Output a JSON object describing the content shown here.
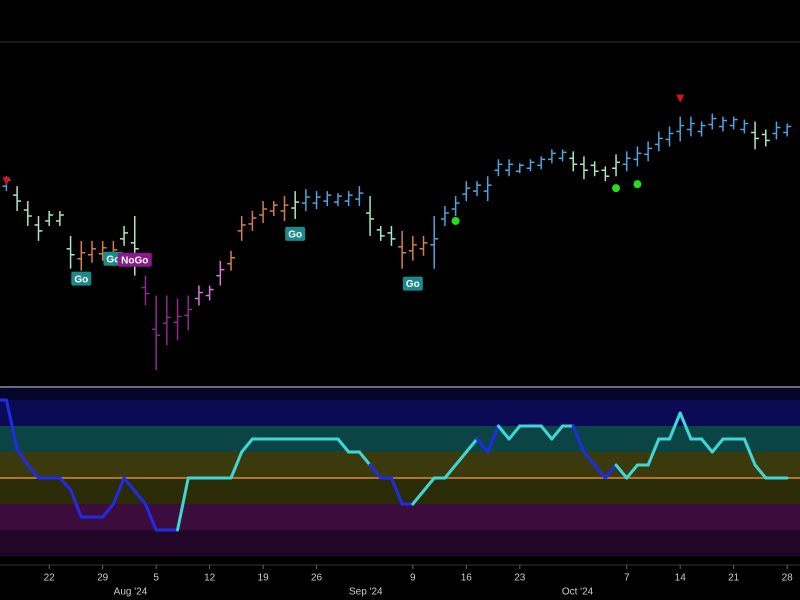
{
  "chart_data": {
    "type": "ohlc",
    "x": [
      0,
      1,
      2,
      3,
      4,
      5,
      6,
      7,
      8,
      9,
      10,
      11,
      12,
      13,
      14,
      15,
      16,
      17,
      18,
      19,
      20,
      21,
      22,
      23,
      24,
      25,
      26,
      27,
      28,
      29,
      30,
      31,
      32,
      33,
      34,
      35,
      36,
      37,
      38,
      39,
      40,
      41,
      42,
      43,
      44,
      45,
      46,
      47,
      48,
      49,
      50,
      51,
      52,
      53,
      54,
      55,
      56,
      57,
      58,
      59,
      60,
      61,
      62,
      63,
      64,
      65,
      66,
      67,
      68,
      69,
      70,
      71,
      72,
      73,
      74
    ],
    "open": [
      207,
      200,
      191,
      176,
      161,
      165,
      165,
      137,
      127,
      131,
      132,
      130,
      147,
      143,
      98,
      56,
      62,
      63,
      70,
      87,
      90,
      110,
      122,
      155,
      162,
      171,
      175,
      175,
      178,
      183,
      183,
      185,
      184,
      185,
      187,
      173,
      156,
      153,
      139,
      135,
      137,
      141,
      167,
      177,
      192,
      195,
      195,
      216,
      216,
      215,
      218,
      221,
      227,
      228,
      228,
      222,
      221,
      216,
      218,
      222,
      227,
      232,
      242,
      247,
      255,
      257,
      255,
      262,
      260,
      261,
      257,
      254,
      252,
      253,
      254
    ],
    "high": [
      220,
      210,
      200,
      185,
      170,
      175,
      175,
      150,
      145,
      145,
      145,
      145,
      160,
      170,
      110,
      90,
      90,
      87,
      90,
      100,
      100,
      125,
      135,
      170,
      175,
      185,
      185,
      190,
      195,
      197,
      195,
      195,
      193,
      195,
      200,
      190,
      160,
      160,
      155,
      150,
      150,
      170,
      180,
      190,
      205,
      205,
      210,
      227,
      227,
      223,
      227,
      230,
      237,
      237,
      235,
      230,
      225,
      220,
      232,
      235,
      240,
      245,
      255,
      260,
      270,
      270,
      265,
      273,
      270,
      270,
      267,
      265,
      257,
      265,
      263
    ],
    "low": [
      200,
      195,
      175,
      160,
      145,
      160,
      160,
      117,
      115,
      123,
      125,
      120,
      140,
      110,
      80,
      15,
      40,
      45,
      55,
      80,
      85,
      100,
      115,
      145,
      155,
      163,
      170,
      165,
      167,
      175,
      177,
      180,
      180,
      180,
      180,
      150,
      145,
      140,
      117,
      125,
      130,
      117,
      160,
      170,
      185,
      190,
      185,
      210,
      210,
      213,
      215,
      217,
      223,
      225,
      215,
      207,
      210,
      205,
      210,
      215,
      220,
      225,
      235,
      240,
      245,
      250,
      250,
      257,
      255,
      257,
      253,
      237,
      240,
      247,
      250
    ],
    "close": [
      213,
      206,
      185,
      170,
      155,
      171,
      171,
      131,
      133,
      137,
      138,
      136,
      153,
      137,
      92,
      50,
      68,
      69,
      76,
      93,
      96,
      116,
      128,
      161,
      168,
      177,
      181,
      181,
      184,
      189,
      189,
      191,
      190,
      191,
      193,
      167,
      150,
      147,
      133,
      141,
      143,
      147,
      173,
      183,
      198,
      201,
      201,
      222,
      222,
      221,
      224,
      227,
      233,
      234,
      222,
      216,
      215,
      210,
      224,
      228,
      233,
      238,
      248,
      253,
      261,
      263,
      261,
      268,
      266,
      267,
      263,
      248,
      246,
      259,
      260
    ],
    "colors": [
      "#4fa3e0",
      "#4fa3e0",
      "#a8e8c8",
      "#a8e8c8",
      "#a8e8c8",
      "#a8e8c8",
      "#a8e8c8",
      "#a8e8c8",
      "#d2804a",
      "#d2804a",
      "#d2804a",
      "#d2804a",
      "#a8e8c8",
      "#a8e8c8",
      "#8e2a8e",
      "#8e2a8e",
      "#8e2a8e",
      "#8e2a8e",
      "#8e2a8e",
      "#d67ad6",
      "#d67ad6",
      "#d67ad6",
      "#d2804a",
      "#d2804a",
      "#d2804a",
      "#d2804a",
      "#d2804a",
      "#d2804a",
      "#a8e8c8",
      "#4fa3e0",
      "#4fa3e0",
      "#4fa3e0",
      "#4fa3e0",
      "#4fa3e0",
      "#4fa3e0",
      "#a8e8c8",
      "#a8e8c8",
      "#a8e8c8",
      "#d2804a",
      "#d2804a",
      "#d2804a",
      "#4fa3e0",
      "#4fa3e0",
      "#4fa3e0",
      "#4fa3e0",
      "#4fa3e0",
      "#4fa3e0",
      "#4fa3e0",
      "#4fa3e0",
      "#4fa3e0",
      "#4fa3e0",
      "#4fa3e0",
      "#4fa3e0",
      "#4fa3e0",
      "#a8e8c8",
      "#a8e8c8",
      "#a8e8c8",
      "#a8e8c8",
      "#a8e8c8",
      "#4fa3e0",
      "#4fa3e0",
      "#4fa3e0",
      "#4fa3e0",
      "#4fa3e0",
      "#4fa3e0",
      "#4fa3e0",
      "#4fa3e0",
      "#4fa3e0",
      "#4fa3e0",
      "#4fa3e0",
      "#4fa3e0",
      "#a8e8c8",
      "#a8e8c8",
      "#4fa3e0",
      "#4fa3e0"
    ],
    "xlim": [
      0.4,
      75.2
    ],
    "ylim": [
      0,
      343
    ],
    "xticks": [
      {
        "value": 5,
        "label": "22"
      },
      {
        "value": 10,
        "label": "29"
      },
      {
        "value": 15,
        "label": "5"
      },
      {
        "value": 20,
        "label": "12"
      },
      {
        "value": 25,
        "label": "19"
      },
      {
        "value": 30,
        "label": "26"
      },
      {
        "value": 39,
        "label": "9"
      },
      {
        "value": 44,
        "label": "16"
      },
      {
        "value": 49,
        "label": "23"
      },
      {
        "value": 59,
        "label": "7"
      },
      {
        "value": 64,
        "label": "14"
      },
      {
        "value": 69,
        "label": "21"
      },
      {
        "value": 74,
        "label": "28"
      }
    ],
    "month_ticks": [
      {
        "value": 12.6,
        "label": "Aug '24"
      },
      {
        "value": 34.6,
        "label": "Sep '24"
      },
      {
        "value": 54.4,
        "label": "Oct '24"
      }
    ],
    "triangles": [
      {
        "x": 1,
        "y": 205,
        "color": "#e01010"
      },
      {
        "x": 64,
        "y": 288,
        "color": "#e01010"
      }
    ],
    "dots": [
      {
        "x": 43,
        "y": 165,
        "color": "#22dd22"
      },
      {
        "x": 58,
        "y": 198,
        "color": "#22dd22"
      },
      {
        "x": 60,
        "y": 202,
        "color": "#22dd22"
      }
    ],
    "labels": [
      {
        "text": "Go",
        "x": 8,
        "y": 107,
        "color": "#1a8a8a"
      },
      {
        "text": "Go",
        "x": 11,
        "y": 127,
        "color": "#1a8a8a"
      },
      {
        "text": "NoGo",
        "x": 13,
        "y": 126,
        "color": "#8a1a8a"
      },
      {
        "text": "Go",
        "x": 28,
        "y": 152,
        "color": "#1a8a8a"
      },
      {
        "text": "Go",
        "x": 39,
        "y": 102,
        "color": "#1a8a8a"
      }
    ],
    "oscillator": {
      "ylim": [
        -6,
        6
      ],
      "zero": 0,
      "zero_color": "#e08a30",
      "bands": [
        {
          "from": 4,
          "to": 6,
          "color": "#0b0b55"
        },
        {
          "from": 2,
          "to": 4,
          "color": "#0b4444"
        },
        {
          "from": 0,
          "to": 2,
          "color": "#3a3a0c"
        },
        {
          "from": -2,
          "to": 0,
          "color": "#2b2b08"
        },
        {
          "from": -4,
          "to": -2,
          "color": "#3c0c3c"
        },
        {
          "from": -6,
          "to": -4,
          "color": "#220628"
        }
      ],
      "values": [
        6,
        6,
        2.2,
        1,
        0,
        0,
        0,
        -0.9,
        -3,
        -3,
        -3,
        -2,
        0,
        -1,
        -2,
        -4,
        -4,
        -4,
        0,
        0,
        0,
        0,
        0,
        2,
        3,
        3,
        3,
        3,
        3,
        3,
        3,
        3,
        3,
        2,
        2,
        1,
        0,
        0,
        -2,
        -2,
        -1,
        0,
        0,
        1,
        2,
        3,
        2,
        4,
        3,
        4,
        4,
        4,
        3,
        4,
        4,
        2,
        1,
        0,
        1,
        0,
        1,
        1,
        3,
        3,
        5,
        3,
        3,
        2,
        3,
        3,
        3,
        1,
        0,
        0,
        0
      ],
      "colors": [
        "#1f2be6",
        "#1f2be6",
        "#1f2be6",
        "#1f2be6",
        "#1f2be6",
        "#1f2be6",
        "#1f2be6",
        "#1f2be6",
        "#1f2be6",
        "#1f2be6",
        "#1f2be6",
        "#1f2be6",
        "#1f2be6",
        "#1f2be6",
        "#1f2be6",
        "#1f2be6",
        "#1f2be6",
        "#1f2be6",
        "#3fd6d6",
        "#3fd6d6",
        "#3fd6d6",
        "#3fd6d6",
        "#3fd6d6",
        "#3fd6d6",
        "#3fd6d6",
        "#3fd6d6",
        "#3fd6d6",
        "#3fd6d6",
        "#3fd6d6",
        "#3fd6d6",
        "#3fd6d6",
        "#3fd6d6",
        "#3fd6d6",
        "#3fd6d6",
        "#3fd6d6",
        "#3fd6d6",
        "#1f2be6",
        "#1f2be6",
        "#1f2be6",
        "#1f2be6",
        "#3fd6d6",
        "#3fd6d6",
        "#3fd6d6",
        "#3fd6d6",
        "#3fd6d6",
        "#3fd6d6",
        "#1f2be6",
        "#1f2be6",
        "#3fd6d6",
        "#3fd6d6",
        "#3fd6d6",
        "#3fd6d6",
        "#3fd6d6",
        "#3fd6d6",
        "#3fd6d6",
        "#1f2be6",
        "#1f2be6",
        "#1f2be6",
        "#1f2be6",
        "#3fd6d6",
        "#3fd6d6",
        "#3fd6d6",
        "#3fd6d6",
        "#3fd6d6",
        "#3fd6d6",
        "#3fd6d6",
        "#3fd6d6",
        "#3fd6d6",
        "#3fd6d6",
        "#3fd6d6",
        "#3fd6d6",
        "#3fd6d6",
        "#3fd6d6",
        "#3fd6d6",
        "#3fd6d6"
      ]
    }
  }
}
